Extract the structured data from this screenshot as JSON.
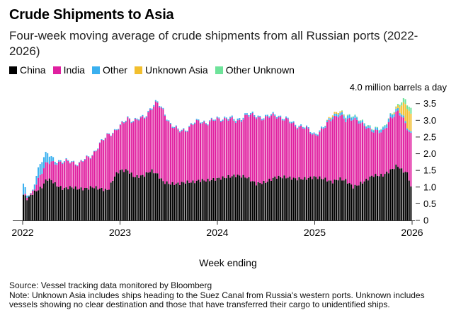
{
  "title": "Crude Shipments to Asia",
  "subtitle": "Four-week moving average of crude shipments from all Russian ports (2022-2026)",
  "unit_label": "4.0 million barrels a day",
  "xlabel": "Week ending",
  "source": "Source: Vessel tracking data monitored by Bloomberg",
  "note": "Note: Unknown Asia includes ships heading to the Suez Canal from Russia's western ports. Unknown includes vessels showing no clear destination and those that have transferred their cargo to unidentified ships.",
  "legend": [
    {
      "label": "China",
      "color": "#000000"
    },
    {
      "label": "India",
      "color": "#e020a0"
    },
    {
      "label": "Other",
      "color": "#3ab0ef"
    },
    {
      "label": "Unknown Asia",
      "color": "#f2bf2e"
    },
    {
      "label": "Other Unknown",
      "color": "#6ee39a"
    }
  ],
  "chart_data": {
    "type": "bar",
    "stacked": true,
    "title": "Crude Shipments to Asia",
    "xlabel": "Week ending",
    "ylabel": "million barrels a day",
    "ylim": [
      0,
      4.0
    ],
    "yticks": [
      "0",
      "0.5",
      "1.0",
      "1.5",
      "2.0",
      "2.5",
      "3.0",
      "3.5"
    ],
    "xticks": [
      "2022",
      "2023",
      "2024",
      "2025",
      "2026"
    ],
    "x_range_years": [
      2022,
      2026
    ],
    "series_names": [
      "China",
      "India",
      "Other",
      "Unknown Asia",
      "Other Unknown"
    ],
    "colors": [
      "#000000",
      "#e020a0",
      "#3ab0ef",
      "#f2bf2e",
      "#6ee39a"
    ],
    "keypoints": {
      "t": [
        2022.0,
        2022.05,
        2022.1,
        2022.15,
        2022.2,
        2022.25,
        2022.3,
        2022.35,
        2022.42,
        2022.5,
        2022.58,
        2022.65,
        2022.72,
        2022.8,
        2022.88,
        2022.95,
        2023.0,
        2023.08,
        2023.15,
        2023.25,
        2023.32,
        2023.38,
        2023.45,
        2023.52,
        2023.6,
        2023.68,
        2023.75,
        2023.82,
        2023.9,
        2024.0,
        2024.1,
        2024.2,
        2024.3,
        2024.4,
        2024.5,
        2024.6,
        2024.7,
        2024.8,
        2024.9,
        2025.0,
        2025.1,
        2025.18,
        2025.25,
        2025.32,
        2025.4,
        2025.5,
        2025.6,
        2025.7,
        2025.78,
        2025.85,
        2025.9,
        2025.93,
        2025.96,
        2026.0
      ],
      "total": [
        1.2,
        0.7,
        0.8,
        1.5,
        1.8,
        2.0,
        1.9,
        1.8,
        1.75,
        1.8,
        1.7,
        1.85,
        2.0,
        2.3,
        2.6,
        2.7,
        2.8,
        3.1,
        3.0,
        3.1,
        3.4,
        3.55,
        3.3,
        2.9,
        2.7,
        2.75,
        2.9,
        3.0,
        2.95,
        3.05,
        3.1,
        3.0,
        3.2,
        3.15,
        3.1,
        3.2,
        3.05,
        2.9,
        2.8,
        2.6,
        2.8,
        3.2,
        3.3,
        3.1,
        3.2,
        2.9,
        2.8,
        2.7,
        3.2,
        3.4,
        3.55,
        3.65,
        3.5,
        3.3
      ],
      "china": [
        0.8,
        0.65,
        0.8,
        0.9,
        1.0,
        1.25,
        1.2,
        1.05,
        0.95,
        1.0,
        0.95,
        0.95,
        1.0,
        0.95,
        0.9,
        1.35,
        1.5,
        1.5,
        1.3,
        1.35,
        1.5,
        1.4,
        1.15,
        1.1,
        1.1,
        1.15,
        1.15,
        1.2,
        1.2,
        1.25,
        1.3,
        1.35,
        1.3,
        1.1,
        1.15,
        1.3,
        1.3,
        1.25,
        1.25,
        1.3,
        1.25,
        1.15,
        1.25,
        1.2,
        1.0,
        1.15,
        1.35,
        1.35,
        1.5,
        1.65,
        1.5,
        1.45,
        1.4,
        0.85
      ],
      "other": [
        0.4,
        0.05,
        0.0,
        0.3,
        0.35,
        0.3,
        0.15,
        0.05,
        0.03,
        0.02,
        0.02,
        0.02,
        0.02,
        0.02,
        0.02,
        0.02,
        0.02,
        0.03,
        0.03,
        0.03,
        0.04,
        0.04,
        0.03,
        0.03,
        0.03,
        0.03,
        0.03,
        0.03,
        0.03,
        0.03,
        0.04,
        0.05,
        0.05,
        0.04,
        0.04,
        0.04,
        0.04,
        0.04,
        0.04,
        0.04,
        0.05,
        0.06,
        0.08,
        0.1,
        0.08,
        0.06,
        0.06,
        0.08,
        0.1,
        0.08,
        0.07,
        0.06,
        0.05,
        0.05
      ],
      "unknown_asia": [
        0,
        0,
        0,
        0,
        0,
        0,
        0,
        0,
        0,
        0,
        0,
        0,
        0,
        0,
        0,
        0,
        0,
        0,
        0,
        0,
        0,
        0,
        0,
        0,
        0,
        0,
        0,
        0,
        0,
        0,
        0,
        0,
        0,
        0,
        0,
        0,
        0,
        0,
        0,
        0,
        0,
        0.05,
        0.05,
        0.0,
        0.0,
        0.0,
        0.0,
        0.0,
        0.0,
        0.05,
        0.3,
        0.5,
        0.6,
        0.5
      ],
      "other_unknown": [
        0,
        0,
        0,
        0,
        0,
        0,
        0,
        0,
        0,
        0,
        0,
        0,
        0,
        0,
        0,
        0,
        0,
        0,
        0,
        0,
        0,
        0,
        0,
        0,
        0,
        0,
        0,
        0,
        0,
        0,
        0,
        0,
        0,
        0,
        0,
        0,
        0,
        0,
        0,
        0,
        0,
        0,
        0,
        0.03,
        0.02,
        0.02,
        0.02,
        0.02,
        0.02,
        0.03,
        0.1,
        0.15,
        0.1,
        0.2
      ]
    }
  }
}
